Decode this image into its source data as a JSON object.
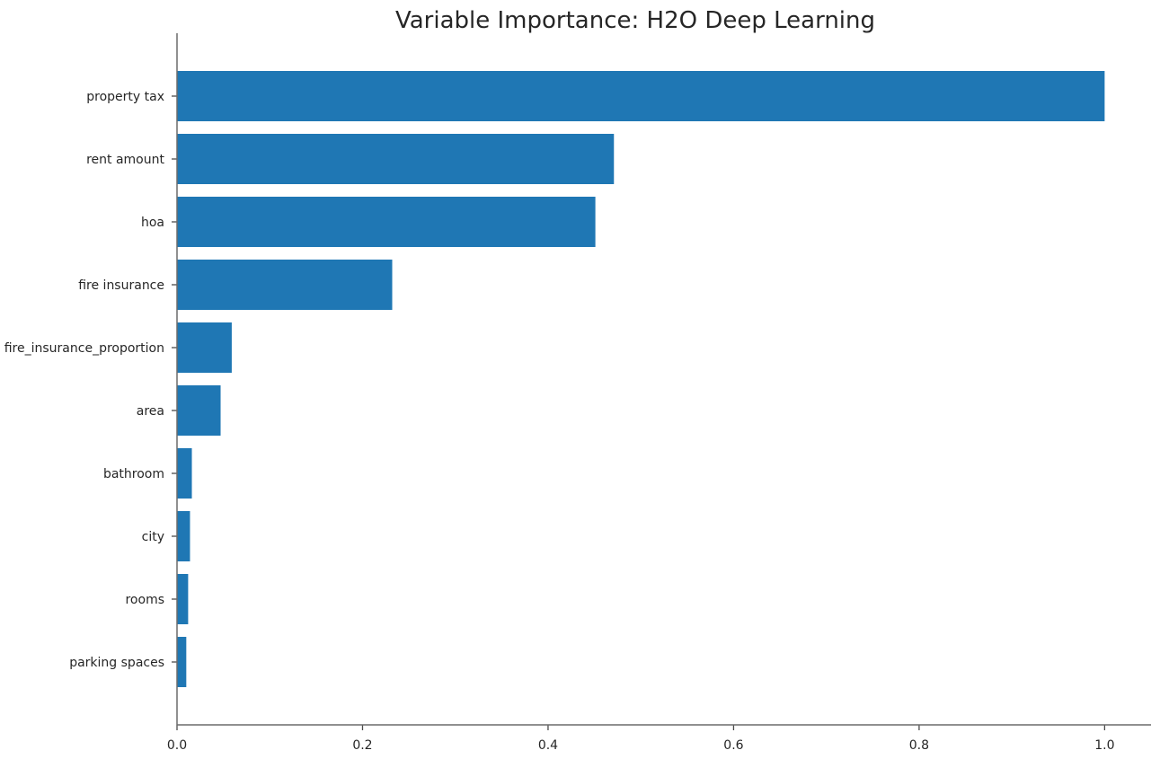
{
  "chart_data": {
    "type": "bar",
    "orientation": "horizontal",
    "title": "Variable Importance: H2O Deep Learning",
    "xlabel": "",
    "ylabel": "",
    "categories": [
      "property tax",
      "rent amount",
      "hoa",
      "fire insurance",
      "fire_insurance_proportion",
      "area",
      "bathroom",
      "city",
      "rooms",
      "parking spaces"
    ],
    "values": [
      1.0,
      0.471,
      0.451,
      0.232,
      0.059,
      0.047,
      0.016,
      0.014,
      0.012,
      0.01
    ],
    "xlim": [
      0,
      1.05
    ],
    "xticks": [
      0.0,
      0.2,
      0.4,
      0.6,
      0.8,
      1.0
    ],
    "xtick_labels": [
      "0.0",
      "0.2",
      "0.4",
      "0.6",
      "0.8",
      "1.0"
    ],
    "grid": false,
    "legend": "none",
    "bar_color": "#1f77b4"
  }
}
